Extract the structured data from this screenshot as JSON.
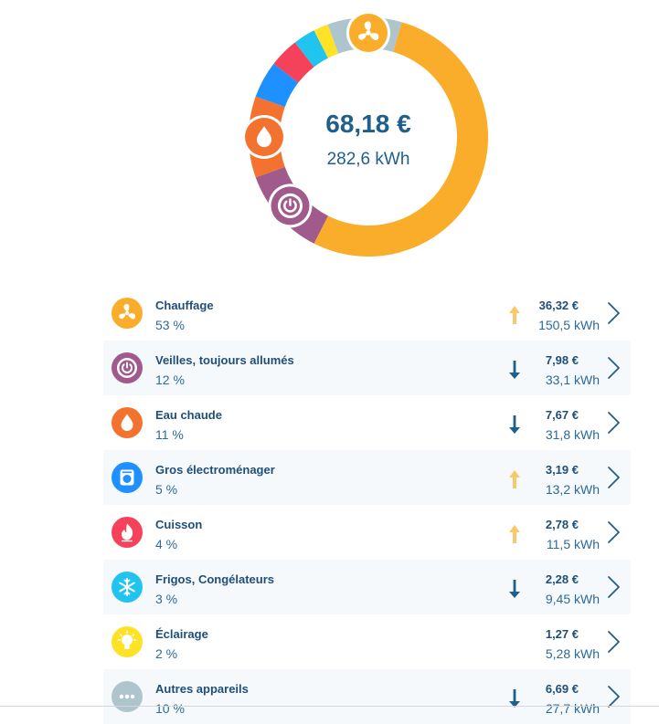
{
  "summary": {
    "amount": "68,18 €",
    "energy": "282,6 kWh"
  },
  "colors": {
    "accent_text": "#1f4e79",
    "trend_up": "#f7c96a",
    "trend_down": "#1f5f8b"
  },
  "donut_segments": [
    {
      "name": "Chauffage",
      "share": 0.53,
      "color": "#f9ad2a"
    },
    {
      "name": "Veilles, toujours allumés",
      "share": 0.12,
      "color": "#a05a8c"
    },
    {
      "name": "Eau chaude",
      "share": 0.11,
      "color": "#f47230"
    },
    {
      "name": "Gros électroménager",
      "share": 0.05,
      "color": "#1e90ff"
    },
    {
      "name": "Cuisson",
      "share": 0.04,
      "color": "#f5415a"
    },
    {
      "name": "Frigos, Congélateurs",
      "share": 0.03,
      "color": "#21c4ee"
    },
    {
      "name": "Éclairage",
      "share": 0.02,
      "color": "#ffe226"
    },
    {
      "name": "Autres appareils",
      "share": 0.1,
      "color": "#aec5ce"
    }
  ],
  "items": [
    {
      "label": "Chauffage",
      "percent": "53 %",
      "euros": "36,32 €",
      "kwh": "150,5 kWh",
      "trend": "up",
      "icon": "fan-icon",
      "color": "#f9ad2a"
    },
    {
      "label": "Veilles, toujours allumés",
      "percent": "12 %",
      "euros": "7,98 €",
      "kwh": "33,1 kWh",
      "trend": "down",
      "icon": "standby-icon",
      "color": "#a05a8c"
    },
    {
      "label": "Eau chaude",
      "percent": "11 %",
      "euros": "7,67 €",
      "kwh": "31,8 kWh",
      "trend": "down",
      "icon": "water-drop-icon",
      "color": "#f47230"
    },
    {
      "label": "Gros électroménager",
      "percent": "5 %",
      "euros": "3,19 €",
      "kwh": "13,2 kWh",
      "trend": "up",
      "icon": "washing-machine-icon",
      "color": "#1e90ff"
    },
    {
      "label": "Cuisson",
      "percent": "4 %",
      "euros": "2,78 €",
      "kwh": "11,5 kWh",
      "trend": "up",
      "icon": "flame-icon",
      "color": "#f5415a"
    },
    {
      "label": "Frigos, Congélateurs",
      "percent": "3 %",
      "euros": "2,28 €",
      "kwh": "9,45 kWh",
      "trend": "down",
      "icon": "snowflake-icon",
      "color": "#21c4ee"
    },
    {
      "label": "Éclairage",
      "percent": "2 %",
      "euros": "1,27 €",
      "kwh": "5,28 kWh",
      "trend": "none",
      "icon": "lightbulb-icon",
      "color": "#ffe226"
    },
    {
      "label": "Autres appareils",
      "percent": "10 %",
      "euros": "6,69 €",
      "kwh": "27,7 kWh",
      "trend": "down",
      "icon": "more-icon",
      "color": "#aec5ce"
    }
  ]
}
